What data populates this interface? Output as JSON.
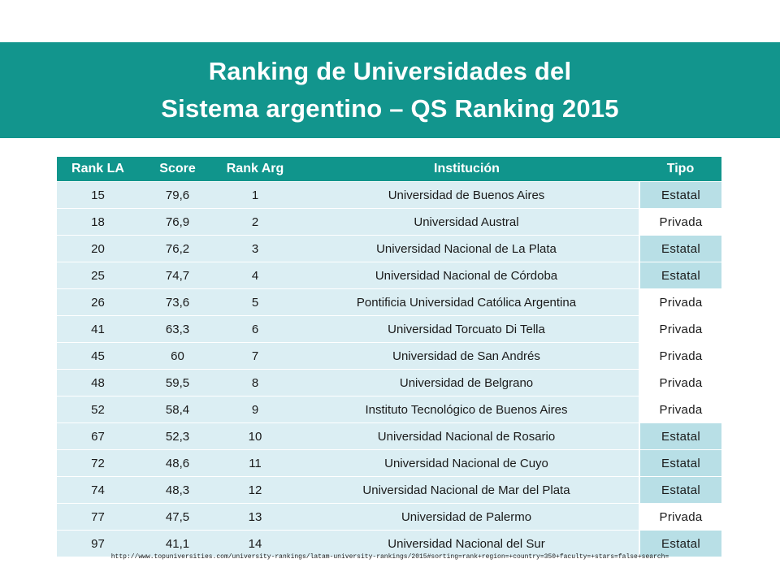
{
  "title": {
    "line1": "Ranking de Universidades del",
    "line2": "Sistema argentino – QS Ranking 2015"
  },
  "colors": {
    "banner": "#12958d",
    "header": "#10958c",
    "row": "#dbeef3",
    "estatal": "#b8dfe6",
    "privada": "#ffffff"
  },
  "table": {
    "columns": [
      "Rank LA",
      "Score",
      "Rank Arg",
      "Institución",
      "Tipo"
    ],
    "rows": [
      {
        "rank_la": "15",
        "score": "79,6",
        "rank_arg": "1",
        "institucion": "Universidad de Buenos Aires",
        "tipo": "Estatal"
      },
      {
        "rank_la": "18",
        "score": "76,9",
        "rank_arg": "2",
        "institucion": "Universidad Austral",
        "tipo": "Privada"
      },
      {
        "rank_la": "20",
        "score": "76,2",
        "rank_arg": "3",
        "institucion": "Universidad Nacional de La Plata",
        "tipo": "Estatal"
      },
      {
        "rank_la": "25",
        "score": "74,7",
        "rank_arg": "4",
        "institucion": "Universidad Nacional de Córdoba",
        "tipo": "Estatal"
      },
      {
        "rank_la": "26",
        "score": "73,6",
        "rank_arg": "5",
        "institucion": "Pontificia Universidad Católica Argentina",
        "tipo": "Privada"
      },
      {
        "rank_la": "41",
        "score": "63,3",
        "rank_arg": "6",
        "institucion": "Universidad Torcuato Di Tella",
        "tipo": "Privada"
      },
      {
        "rank_la": "45",
        "score": "60",
        "rank_arg": "7",
        "institucion": "Universidad de San Andrés",
        "tipo": "Privada"
      },
      {
        "rank_la": "48",
        "score": "59,5",
        "rank_arg": "8",
        "institucion": "Universidad de Belgrano",
        "tipo": "Privada"
      },
      {
        "rank_la": "52",
        "score": "58,4",
        "rank_arg": "9",
        "institucion": "Instituto Tecnológico de Buenos Aires",
        "tipo": "Privada"
      },
      {
        "rank_la": "67",
        "score": "52,3",
        "rank_arg": "10",
        "institucion": "Universidad Nacional de Rosario",
        "tipo": "Estatal"
      },
      {
        "rank_la": "72",
        "score": "48,6",
        "rank_arg": "11",
        "institucion": "Universidad Nacional de Cuyo",
        "tipo": "Estatal"
      },
      {
        "rank_la": "74",
        "score": "48,3",
        "rank_arg": "12",
        "institucion": "Universidad Nacional de Mar del Plata",
        "tipo": "Estatal"
      },
      {
        "rank_la": "77",
        "score": "47,5",
        "rank_arg": "13",
        "institucion": "Universidad de Palermo",
        "tipo": "Privada"
      },
      {
        "rank_la": "97",
        "score": "41,1",
        "rank_arg": "14",
        "institucion": "Universidad Nacional del Sur",
        "tipo": "Estatal"
      }
    ]
  },
  "source": "http://www.topuniversities.com/university-rankings/latam-university-rankings/2015#sorting=rank+region=+country=350+faculty=+stars=false+search="
}
